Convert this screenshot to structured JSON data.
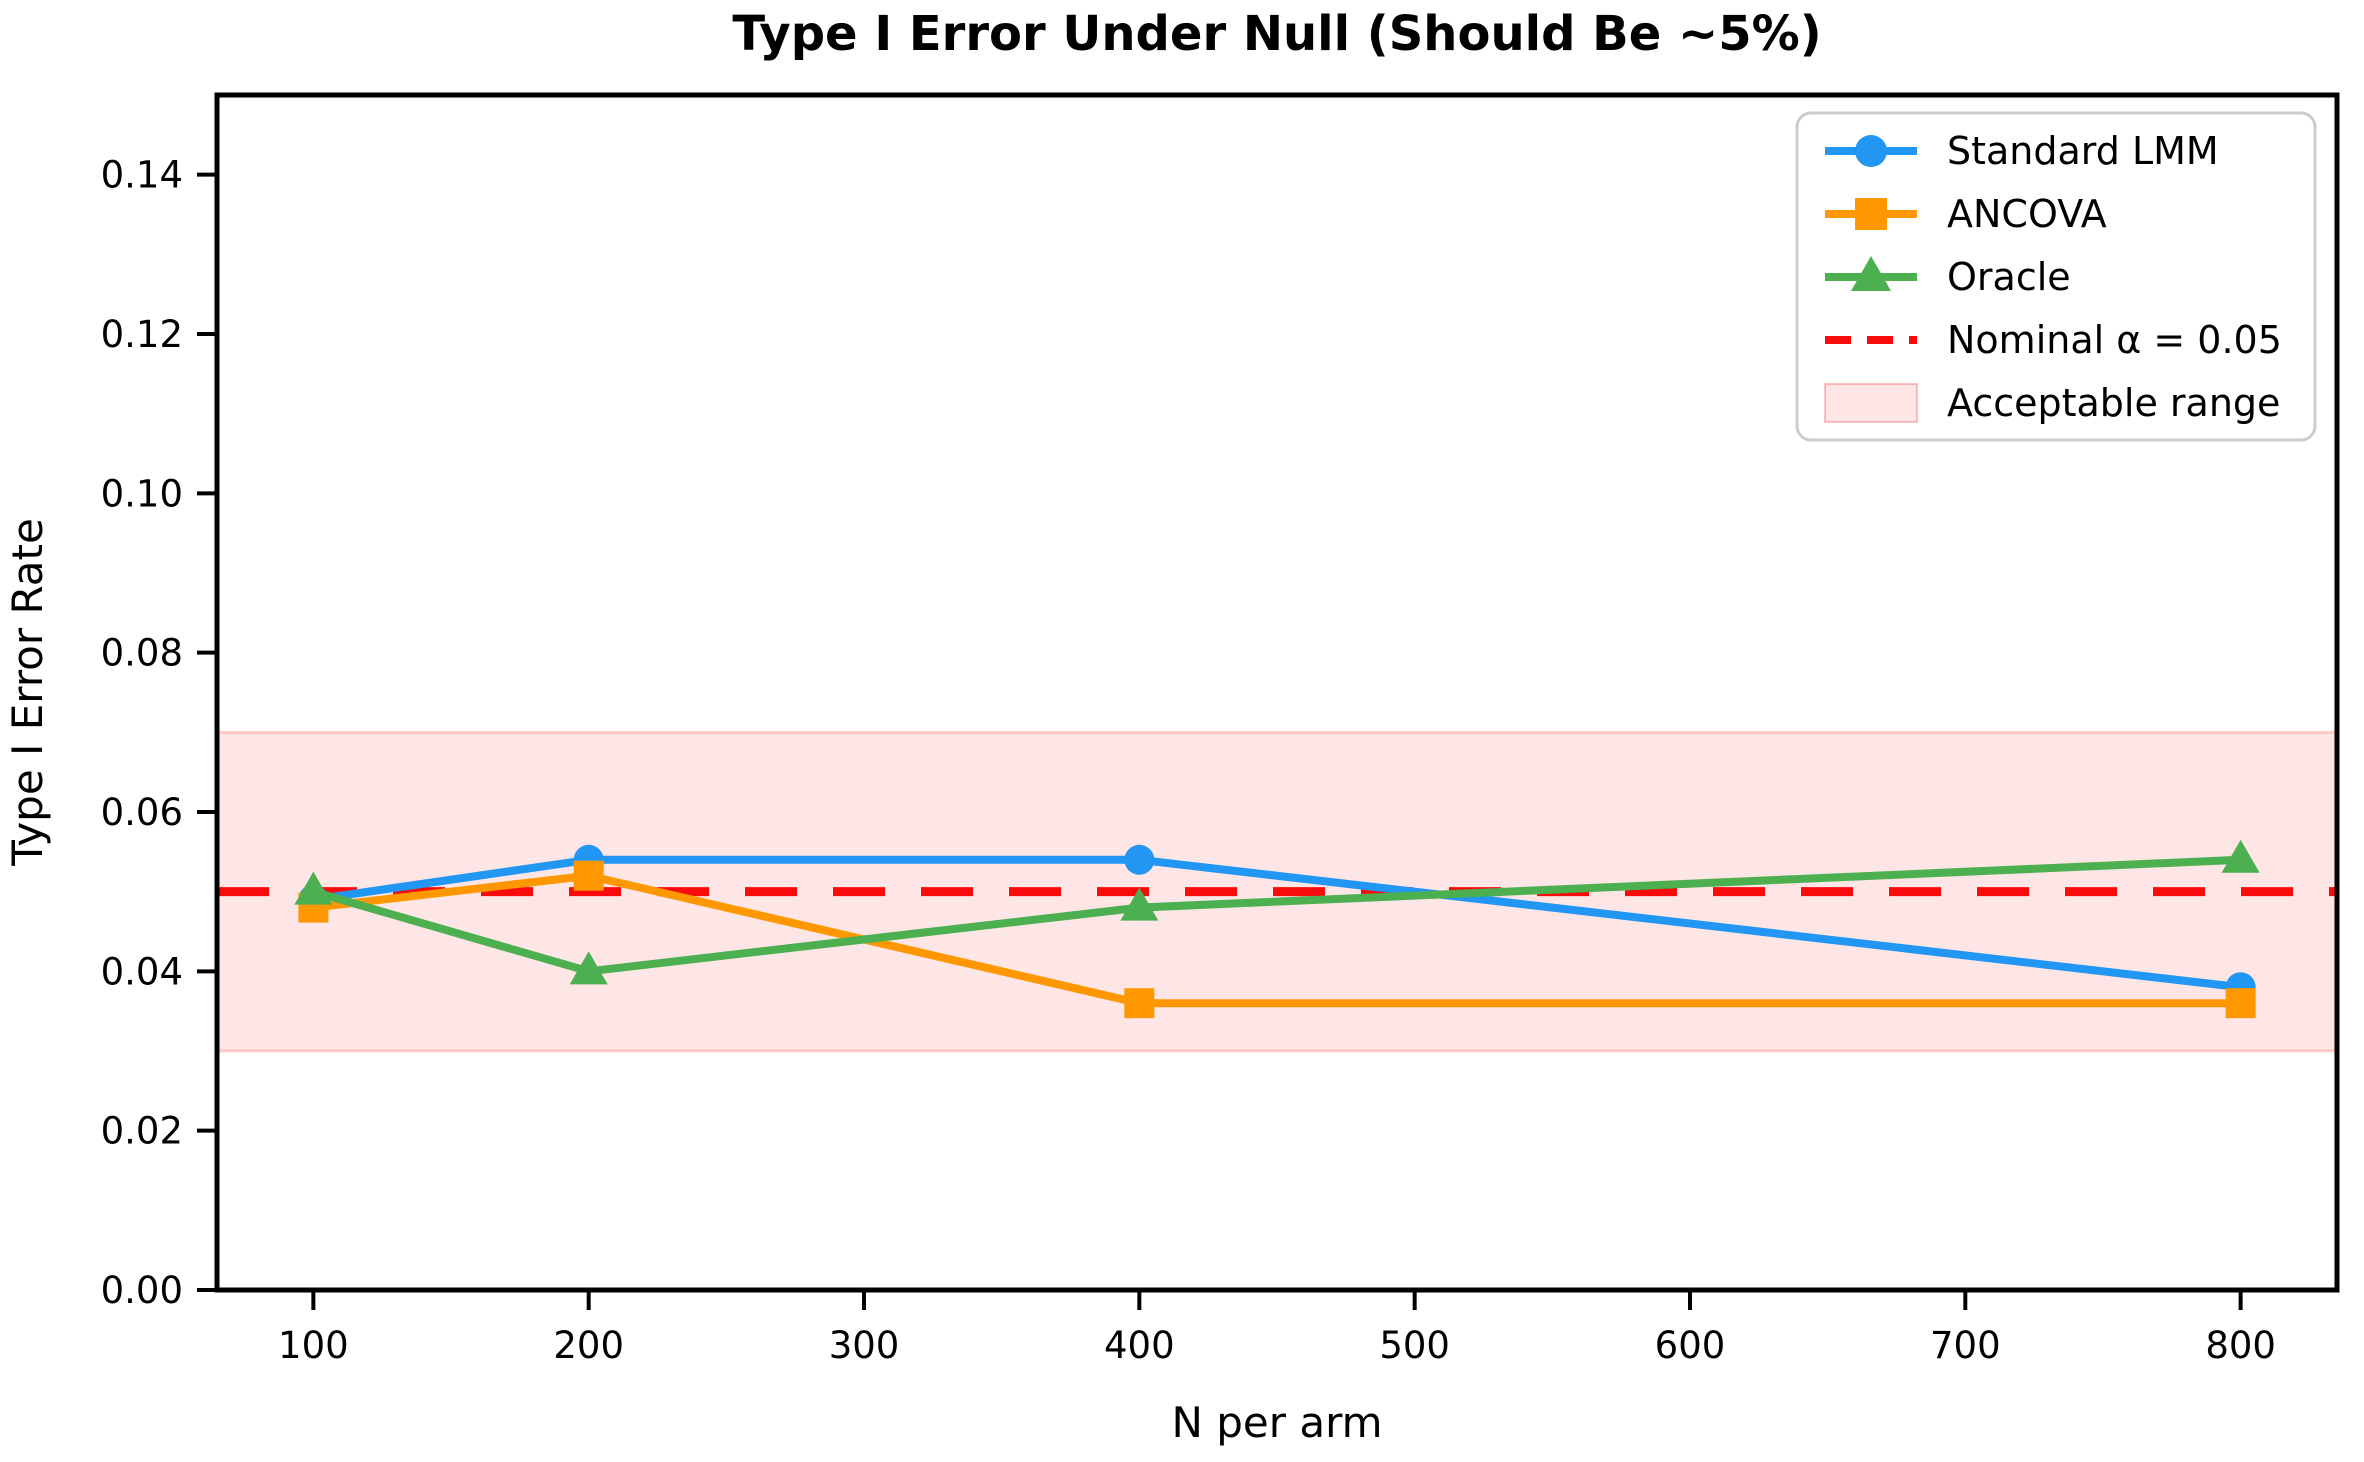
{
  "chart_data": {
    "type": "line",
    "title": "Type I Error Under Null (Should Be ~5%)",
    "xlabel": "N per arm",
    "ylabel": "Type I Error Rate",
    "x": [
      100,
      200,
      400,
      800
    ],
    "series": [
      {
        "name": "Standard LMM",
        "marker": "circle",
        "color": "#2196F3",
        "values": [
          0.049,
          0.054,
          0.054,
          0.038
        ]
      },
      {
        "name": "ANCOVA",
        "marker": "square",
        "color": "#FF9800",
        "values": [
          0.048,
          0.052,
          0.036,
          0.036
        ]
      },
      {
        "name": "Oracle",
        "marker": "triangle",
        "color": "#4CAF50",
        "values": [
          0.05,
          0.04,
          0.048,
          0.054
        ]
      }
    ],
    "reference_line": {
      "label": "Nominal α = 0.05",
      "value": 0.05,
      "color": "#F80B0B",
      "style": "dashed"
    },
    "band": {
      "label": "Acceptable range",
      "from": 0.03,
      "to": 0.07,
      "color": "#F80B0B",
      "alpha": 0.1
    },
    "xlim": [
      65,
      835
    ],
    "ylim": [
      0,
      0.15
    ],
    "xticks": [
      100,
      200,
      300,
      400,
      500,
      600,
      700,
      800
    ],
    "xtick_labels": [
      "100",
      "200",
      "300",
      "400",
      "500",
      "600",
      "700",
      "800"
    ],
    "yticks": [
      0.0,
      0.02,
      0.04,
      0.06,
      0.08,
      0.1,
      0.12,
      0.14
    ],
    "ytick_labels": [
      "0.00",
      "0.02",
      "0.04",
      "0.06",
      "0.08",
      "0.10",
      "0.12",
      "0.14"
    ],
    "grid": false,
    "legend_position": "upper right"
  }
}
